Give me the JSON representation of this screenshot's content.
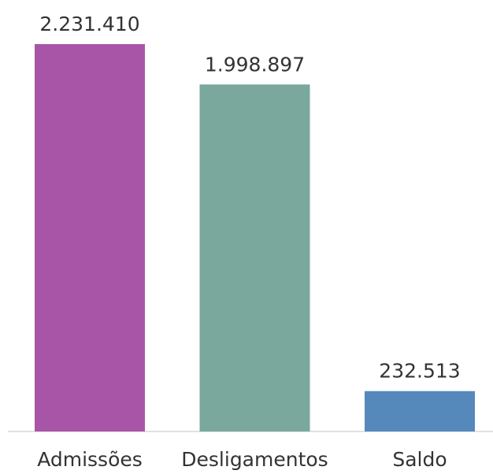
{
  "chart_data": {
    "type": "bar",
    "categories": [
      "Admissões",
      "Desligamentos",
      "Saldo"
    ],
    "values": [
      2231410,
      1998897,
      232513
    ],
    "value_labels": [
      "2.231.410",
      "1.998.897",
      "232.513"
    ],
    "colors": [
      "#a855a8",
      "#7aa89c",
      "#5589bb"
    ]
  }
}
